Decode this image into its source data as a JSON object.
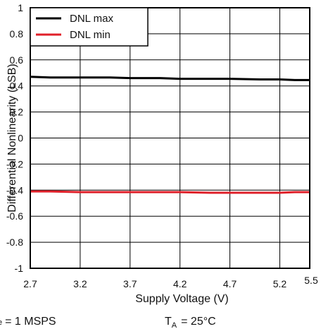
{
  "chart_data": {
    "type": "line",
    "xlabel": "Supply Voltage (V)",
    "ylabel": "Differential Nonlinearity (LSB)",
    "xlim": [
      2.7,
      5.5
    ],
    "ylim": [
      -1,
      1
    ],
    "x_ticks": [
      2.7,
      3.2,
      3.7,
      4.2,
      4.7,
      5.2,
      5.5
    ],
    "x_tick_labels": [
      "2.7",
      "3.2",
      "3.7",
      "4.2",
      "4.7",
      "5.2",
      "5.5"
    ],
    "y_ticks": [
      -1,
      -0.8,
      -0.6,
      -0.4,
      -0.2,
      0,
      0.2,
      0.4,
      0.6,
      0.8,
      1
    ],
    "y_tick_labels": [
      "-1",
      "-0.8",
      "-0.6",
      "-0.4",
      "-0.2",
      "0",
      "0.2",
      "0.4",
      "0.6",
      "0.8",
      "1"
    ],
    "grid": true,
    "legend_position": "top-left",
    "series": [
      {
        "name": "DNL max",
        "color": "#000000",
        "x": [
          2.7,
          2.9,
          3.2,
          3.5,
          3.7,
          4.0,
          4.2,
          4.5,
          4.7,
          5.0,
          5.2,
          5.35,
          5.5
        ],
        "y": [
          0.47,
          0.465,
          0.465,
          0.465,
          0.46,
          0.46,
          0.455,
          0.455,
          0.455,
          0.45,
          0.45,
          0.445,
          0.445
        ]
      },
      {
        "name": "DNL min",
        "color": "#e0202a",
        "x": [
          2.7,
          2.9,
          3.2,
          3.5,
          3.7,
          4.0,
          4.2,
          4.5,
          4.7,
          5.0,
          5.2,
          5.35,
          5.5
        ],
        "y": [
          -0.41,
          -0.41,
          -0.415,
          -0.415,
          -0.415,
          -0.415,
          -0.415,
          -0.42,
          -0.42,
          -0.42,
          -0.42,
          -0.415,
          -0.415
        ]
      }
    ]
  },
  "conditions": {
    "left_prefix": "e",
    "left_value": "= 1 MSPS",
    "right_symbol": "T",
    "right_sub": "A",
    "right_value": "= 25°C"
  }
}
